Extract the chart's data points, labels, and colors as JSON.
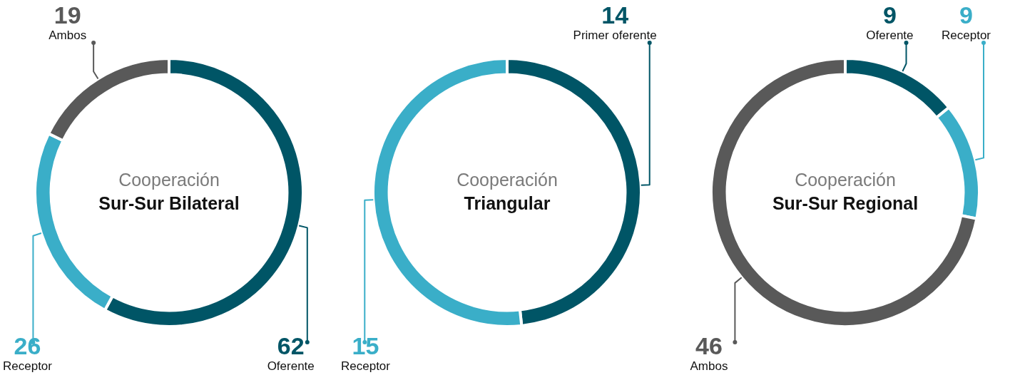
{
  "chart_data": [
    {
      "type": "donut",
      "title": "Cooperación",
      "subtitle": "Sur-Sur Bilateral",
      "categories": [
        "Oferente",
        "Receptor",
        "Ambos"
      ],
      "values": [
        62,
        26,
        19
      ],
      "colors": [
        "#005566",
        "#3aaec8",
        "#595959"
      ],
      "data_labels": true
    },
    {
      "type": "donut",
      "title": "Cooperación",
      "subtitle": "Triangular",
      "categories": [
        "Primer oferente",
        "Receptor"
      ],
      "values": [
        14,
        15
      ],
      "colors": [
        "#005566",
        "#3aaec8"
      ],
      "data_labels": true
    },
    {
      "type": "donut",
      "title": "Cooperación",
      "subtitle": "Sur-Sur Regional",
      "categories": [
        "Oferente",
        "Receptor",
        "Ambos"
      ],
      "values": [
        9,
        9,
        46
      ],
      "colors": [
        "#005566",
        "#3aaec8",
        "#595959"
      ],
      "data_labels": true
    }
  ]
}
